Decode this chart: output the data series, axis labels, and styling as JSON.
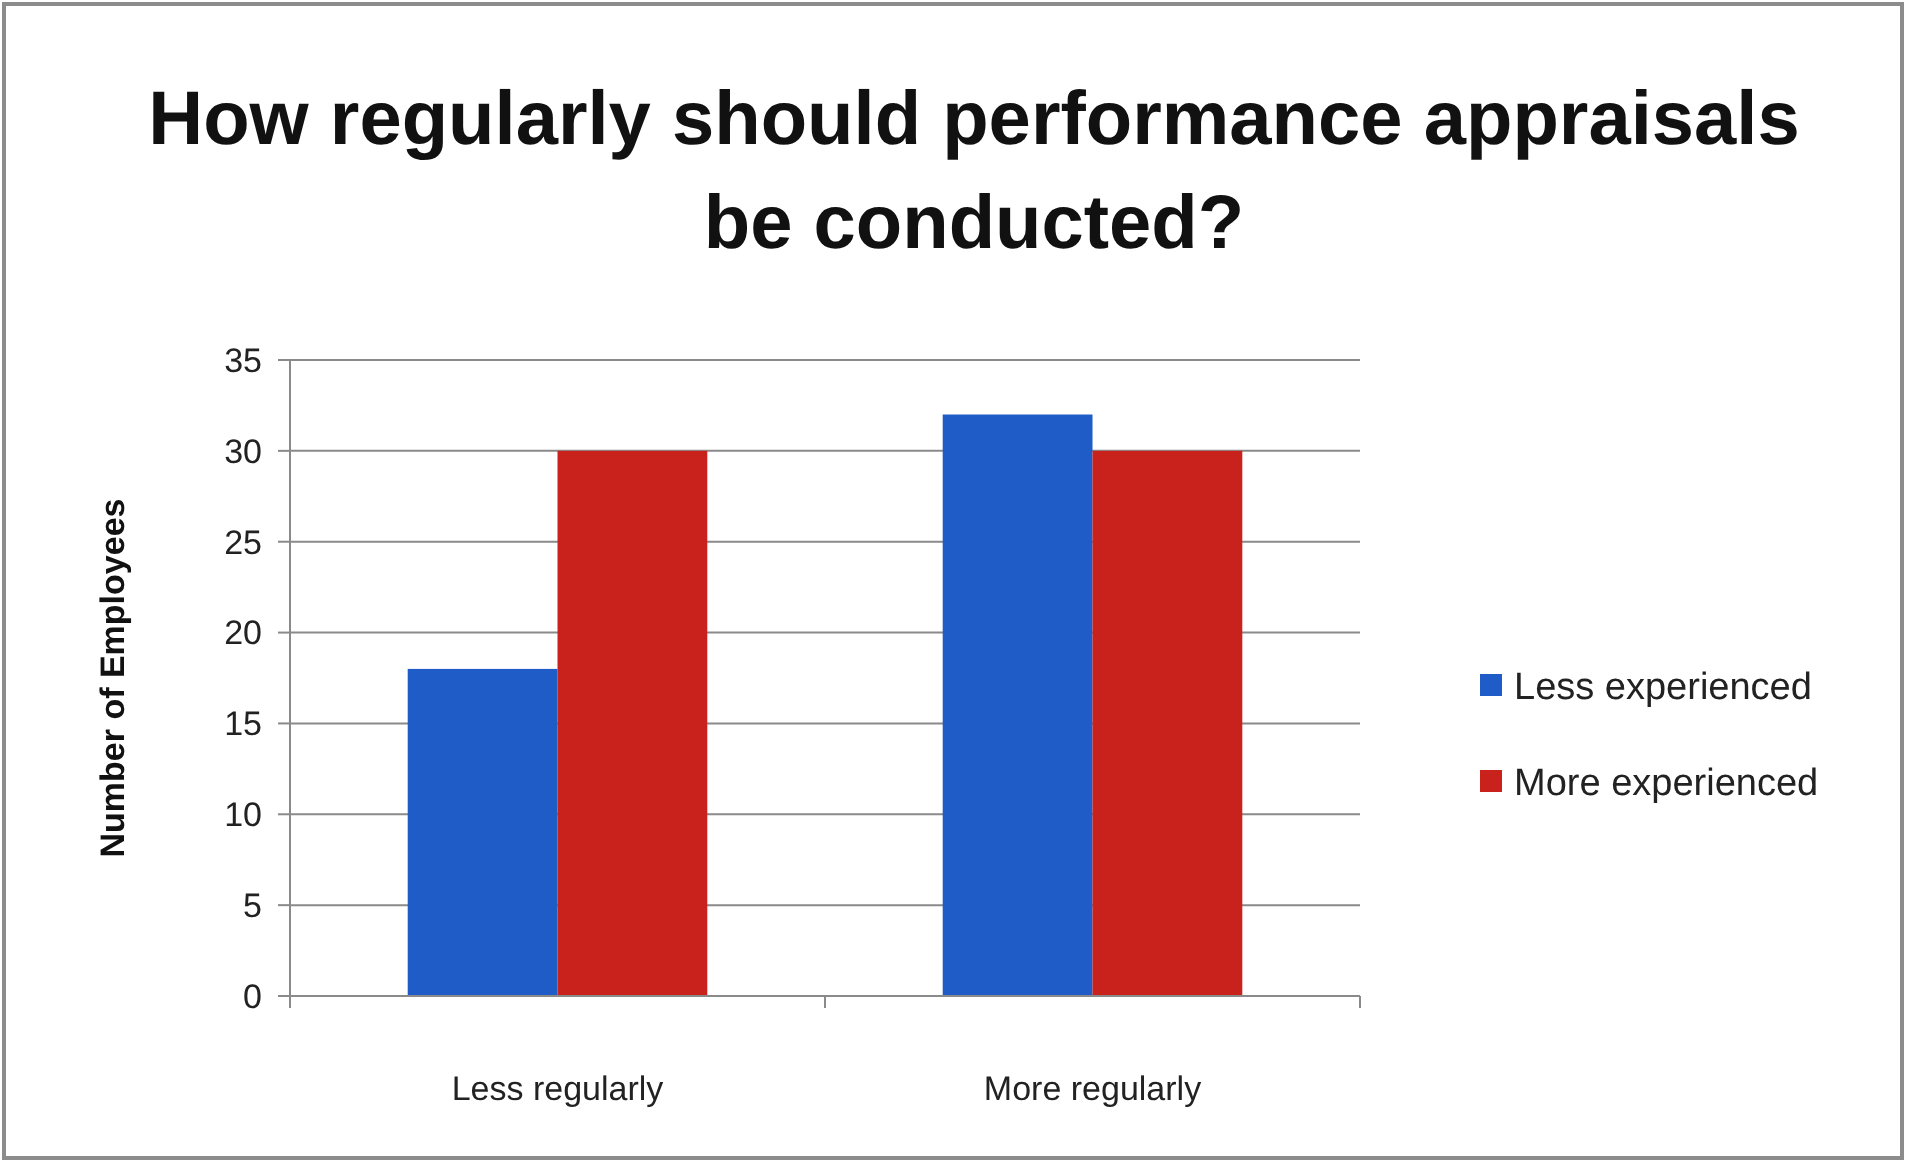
{
  "chart_data": {
    "type": "bar",
    "title": "How regularly should performance appraisals be conducted?",
    "ylabel": "Number of Employees",
    "categories": [
      "Less regularly",
      "More regularly"
    ],
    "series": [
      {
        "name": "Less experienced",
        "color": "#1f5cc8",
        "values": [
          18,
          32
        ]
      },
      {
        "name": "More experienced",
        "color": "#c9221c",
        "values": [
          30,
          30
        ]
      }
    ],
    "ylim": [
      0,
      35
    ],
    "yticks": [
      0,
      5,
      10,
      15,
      20,
      25,
      30,
      35
    ],
    "grid": "y",
    "legend": "right"
  }
}
